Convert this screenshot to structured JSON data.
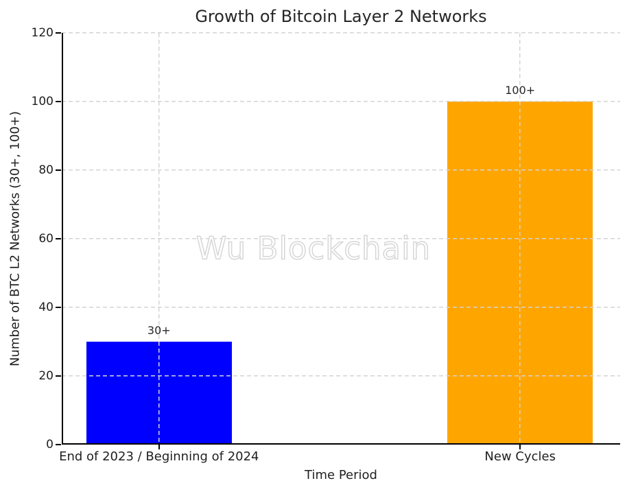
{
  "chart_data": {
    "type": "bar",
    "title": "Growth of Bitcoin Layer 2 Networks",
    "xlabel": "Time Period",
    "ylabel": "Number of BTC L2 Networks (30+, 100+)",
    "categories": [
      "End of 2023 / Beginning of 2024",
      "New Cycles"
    ],
    "values": [
      30,
      100
    ],
    "bar_labels": [
      "30+",
      "100+"
    ],
    "bar_colors": [
      "#0000ff",
      "#ffa500"
    ],
    "ylim": [
      0,
      120
    ],
    "yticks": [
      0,
      20,
      40,
      60,
      80,
      100,
      120
    ],
    "watermark": "Wu Blockchain",
    "layout": {
      "grid": "dashed horizontal at each ytick and vertical at each bar center, drawn above bars",
      "grid_color": "#d4d4d4",
      "spines": "left and bottom only, black",
      "legend": "none",
      "background": "#ffffff",
      "bar_centers_frac": [
        0.1742,
        0.8209
      ],
      "bar_width_frac": 0.26
    }
  }
}
